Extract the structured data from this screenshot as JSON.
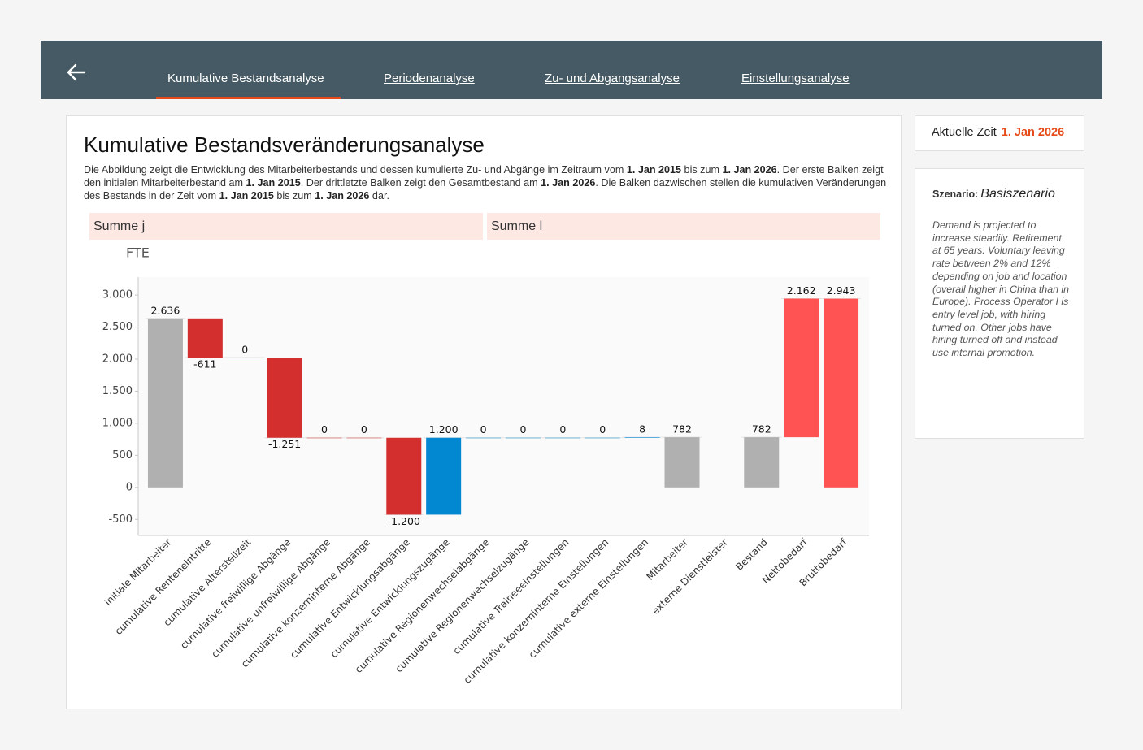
{
  "nav": {
    "tabs": [
      "Kumulative Bestandsanalyse",
      "Periodenanalyse",
      "Zu- und Abgangsanalyse",
      "Einstellungsanalyse"
    ]
  },
  "panel": {
    "title": "Kumulative Bestandsveränderungsanalyse",
    "description": [
      "Die Abbildung zeigt die Entwicklung des Mitarbeiterbestands und dessen kumulierte Zu- und Abgänge im Zeitraum vom ",
      "1. Jan 2015",
      " bis zum ",
      "1. Jan 2026",
      ". Der erste Balken zeigt den initialen Mitarbeiterbestand am ",
      "1. Jan 2015",
      ". Der drittletzte Balken zeigt den Gesamtbestand am ",
      "1. Jan 2026",
      ". Die Balken dazwischen stellen die kumulativen Veränderungen des Bestands in der Zeit vom ",
      "1. Jan 2015",
      " bis zum ",
      "1. Jan 2026",
      " dar."
    ],
    "sections": [
      "Summe j",
      "Summe l"
    ]
  },
  "chart_data": {
    "type": "waterfall",
    "y_label": "FTE",
    "categories": [
      "initiale Mitarbeiter",
      "cumulative Renteneintritte",
      "cumulative Altersteilzeit",
      "cumulative freiwillige Abgänge",
      "cumulative unfreiwillige Abgänge",
      "cumulative konzerninterne Abgänge",
      "cumulative Entwicklungsabgänge",
      "cumulative Entwicklungszugänge",
      "cumulative Regionenwechselabgänge",
      "cumulative Regionenwechselzugänge",
      "cumulative Traineeeinstellungen",
      "cumulative konzerninterne Einstellungen",
      "cumulative externe Einstellungen",
      "Mitarbeiter",
      "externe Dienstleister",
      "Bestand",
      "Nettobedarf",
      "Bruttobedarf"
    ],
    "values": [
      2636,
      -611,
      0,
      -1251,
      0,
      0,
      -1200,
      1200,
      0,
      0,
      0,
      0,
      8,
      782,
      null,
      782,
      2162,
      2943
    ],
    "value_labels": [
      "2.636",
      "-611",
      "0",
      "-1.251",
      "0",
      "0",
      "-1.200",
      "1.200",
      "0",
      "0",
      "0",
      "0",
      "8",
      "782",
      null,
      "782",
      "2.162",
      "2.943"
    ],
    "bar_kinds": [
      "total",
      "delta",
      "delta",
      "delta",
      "delta",
      "delta",
      "delta",
      "delta",
      "delta",
      "delta",
      "delta",
      "delta",
      "delta",
      "total",
      null,
      "total",
      "delta",
      "total"
    ],
    "colors": [
      "#b0b0b0",
      "#d32f2f",
      "#d32f2f",
      "#d32f2f",
      "#d32f2f",
      "#d32f2f",
      "#d32f2f",
      "#0288d1",
      "#0288d1",
      "#0288d1",
      "#0288d1",
      "#0288d1",
      "#0288d1",
      "#b0b0b0",
      null,
      "#b0b0b0",
      "#ff5252",
      "#ff5252"
    ],
    "ylim": [
      -750,
      3280
    ],
    "yticks": [
      {
        "value": 3000,
        "label": "3.000"
      },
      {
        "value": 2500,
        "label": "2.500"
      },
      {
        "value": 2000,
        "label": "2.000"
      },
      {
        "value": 1500,
        "label": "1.500"
      },
      {
        "value": 1000,
        "label": "1.000"
      },
      500,
      0,
      -500
    ],
    "grid": false
  },
  "sidebar": {
    "time_label": "Aktuelle Zeit",
    "time_value": "1. Jan 2026",
    "scenario_label": "Szenario:",
    "scenario_name": "Basiszenario",
    "scenario_text": "Demand is projected to increase steadily. Retirement at 65 years. Voluntary leaving rate between 2% and 12% depending on job and location (overall higher in China than in Europe). Process Operator I is entry level job, with hiring turned on. Other jobs have hiring turned off and instead use internal promotion."
  }
}
